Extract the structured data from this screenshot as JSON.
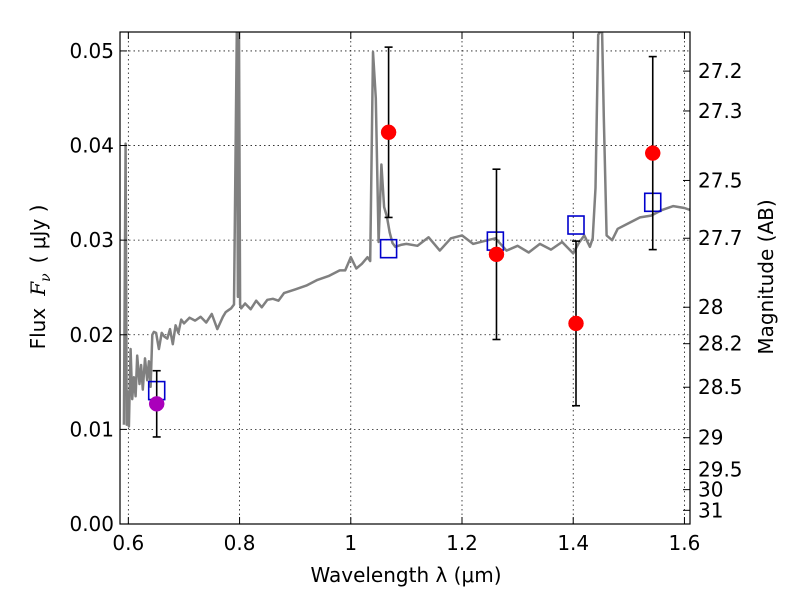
{
  "chart_data": {
    "type": "scatter",
    "title": "",
    "xlabel": "Wavelength  λ (μm)",
    "ylabel_left_prefix": "Flux",
    "ylabel_left_symbol": "F",
    "ylabel_left_sub": "ν",
    "ylabel_left_unit": "(  μJy )",
    "ylabel_right": "Magnitude (AB)",
    "xlim": [
      0.585,
      1.61
    ],
    "ylim": [
      0.0,
      0.052
    ],
    "grid": true,
    "xticks": [
      {
        "v": 0.6,
        "label": "0.6"
      },
      {
        "v": 0.8,
        "label": "0.8"
      },
      {
        "v": 1.0,
        "label": "1"
      },
      {
        "v": 1.2,
        "label": "1.2"
      },
      {
        "v": 1.4,
        "label": "1.4"
      },
      {
        "v": 1.6,
        "label": "1.6"
      }
    ],
    "yticks_left": [
      {
        "v": 0.0,
        "label": "0.00"
      },
      {
        "v": 0.01,
        "label": "0.01"
      },
      {
        "v": 0.02,
        "label": "0.02"
      },
      {
        "v": 0.03,
        "label": "0.03"
      },
      {
        "v": 0.04,
        "label": "0.04"
      },
      {
        "v": 0.05,
        "label": "0.05"
      }
    ],
    "yticks_right": [
      {
        "mag": 27.2,
        "label": "27.2"
      },
      {
        "mag": 27.3,
        "label": "27.3"
      },
      {
        "mag": 27.5,
        "label": "27.5"
      },
      {
        "mag": 27.7,
        "label": "27.7"
      },
      {
        "mag": 28.0,
        "label": "28"
      },
      {
        "mag": 28.2,
        "label": "28.2"
      },
      {
        "mag": 28.5,
        "label": "28.5"
      },
      {
        "mag": 29.0,
        "label": "29"
      },
      {
        "mag": 29.5,
        "label": "29.5"
      },
      {
        "mag": 30.0,
        "label": "30"
      },
      {
        "mag": 31.0,
        "label": "31"
      }
    ],
    "model_spectrum": {
      "color": "#808080",
      "x": [
        0.592,
        0.595,
        0.597,
        0.599,
        0.601,
        0.604,
        0.607,
        0.61,
        0.613,
        0.616,
        0.62,
        0.623,
        0.626,
        0.63,
        0.634,
        0.637,
        0.64,
        0.643,
        0.646,
        0.65,
        0.655,
        0.66,
        0.665,
        0.67,
        0.675,
        0.68,
        0.685,
        0.69,
        0.695,
        0.7,
        0.71,
        0.72,
        0.73,
        0.74,
        0.75,
        0.76,
        0.77,
        0.775,
        0.78,
        0.785,
        0.79,
        0.795,
        0.797,
        0.799,
        0.801,
        0.803,
        0.81,
        0.82,
        0.83,
        0.84,
        0.85,
        0.86,
        0.87,
        0.88,
        0.9,
        0.92,
        0.94,
        0.96,
        0.98,
        0.99,
        1.0,
        1.01,
        1.02,
        1.03,
        1.035,
        1.04,
        1.045,
        1.05,
        1.055,
        1.06,
        1.065,
        1.07,
        1.075,
        1.08,
        1.09,
        1.1,
        1.12,
        1.14,
        1.16,
        1.18,
        1.2,
        1.22,
        1.24,
        1.26,
        1.28,
        1.3,
        1.32,
        1.34,
        1.36,
        1.38,
        1.4,
        1.41,
        1.42,
        1.43,
        1.435,
        1.44,
        1.445,
        1.448,
        1.452,
        1.455,
        1.46,
        1.47,
        1.48,
        1.5,
        1.52,
        1.54,
        1.56,
        1.58,
        1.6,
        1.61
      ],
      "y": [
        0.0105,
        0.0402,
        0.0105,
        0.014,
        0.0103,
        0.0185,
        0.0132,
        0.0155,
        0.0135,
        0.0178,
        0.0148,
        0.0168,
        0.0142,
        0.0175,
        0.0152,
        0.0172,
        0.0145,
        0.02,
        0.0203,
        0.0202,
        0.0185,
        0.0202,
        0.0198,
        0.0196,
        0.0206,
        0.019,
        0.021,
        0.0202,
        0.0216,
        0.0212,
        0.0218,
        0.0215,
        0.0219,
        0.0213,
        0.0222,
        0.0206,
        0.0219,
        0.0224,
        0.0226,
        0.0228,
        0.0232,
        0.052,
        0.024,
        0.052,
        0.0232,
        0.0228,
        0.0233,
        0.0227,
        0.0236,
        0.0229,
        0.0237,
        0.0238,
        0.0236,
        0.0244,
        0.0248,
        0.0252,
        0.0258,
        0.0262,
        0.0268,
        0.0268,
        0.0282,
        0.027,
        0.0275,
        0.0282,
        0.0278,
        0.0499,
        0.045,
        0.0298,
        0.038,
        0.0335,
        0.0325,
        0.0308,
        0.0297,
        0.0293,
        0.0295,
        0.0296,
        0.0294,
        0.0303,
        0.0289,
        0.0302,
        0.0305,
        0.0296,
        0.0299,
        0.0302,
        0.0289,
        0.0294,
        0.0287,
        0.0296,
        0.029,
        0.0298,
        0.0286,
        0.0297,
        0.0305,
        0.0293,
        0.0302,
        0.0355,
        0.0517,
        0.052,
        0.052,
        0.043,
        0.0305,
        0.03,
        0.0312,
        0.0318,
        0.0324,
        0.0326,
        0.0332,
        0.0336,
        0.0334,
        0.0332
      ]
    },
    "series": [
      {
        "name": "",
        "marker": "circle",
        "color": "#ff0000",
        "points": [
          {
            "x": 1.068,
            "y": 0.0414,
            "err": 0.009
          },
          {
            "x": 1.262,
            "y": 0.0285,
            "err": 0.009
          },
          {
            "x": 1.405,
            "y": 0.0212,
            "err": 0.0087
          },
          {
            "x": 1.543,
            "y": 0.0392,
            "err": 0.0102
          }
        ]
      },
      {
        "name": "",
        "marker": "circle",
        "color": "#aa00bb",
        "points": [
          {
            "x": 0.651,
            "y": 0.0127,
            "err": 0.0035
          }
        ]
      },
      {
        "name": "",
        "marker": "square-open",
        "color": "#0000cc",
        "points": [
          {
            "x": 0.651,
            "y": 0.0141
          },
          {
            "x": 1.068,
            "y": 0.0291
          },
          {
            "x": 1.26,
            "y": 0.0299
          },
          {
            "x": 1.405,
            "y": 0.0316
          },
          {
            "x": 1.543,
            "y": 0.034
          }
        ]
      }
    ]
  }
}
